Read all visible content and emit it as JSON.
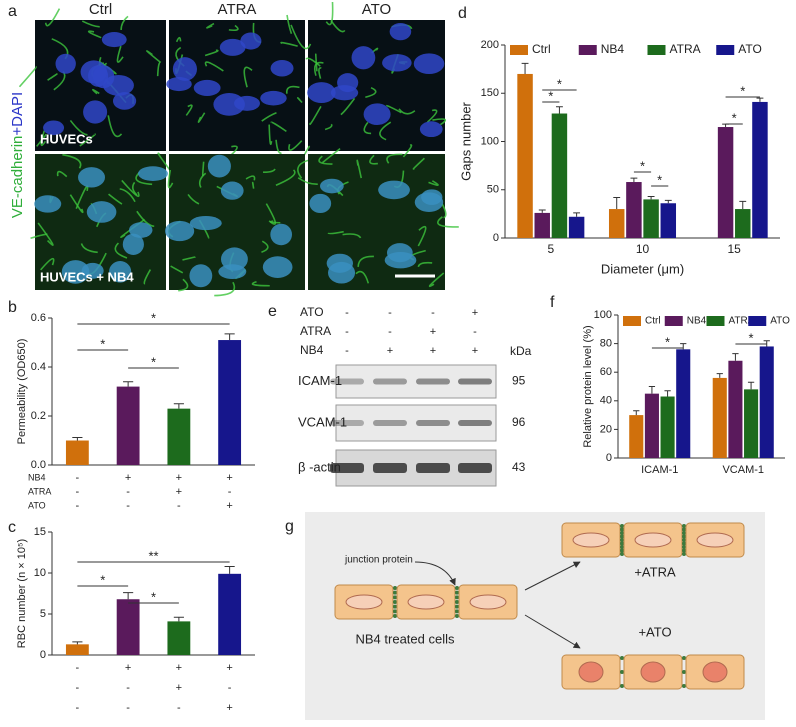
{
  "panel_labels": [
    "a",
    "b",
    "c",
    "d",
    "e",
    "f",
    "g"
  ],
  "panel_a": {
    "columns": [
      "Ctrl",
      "ATRA",
      "ATO"
    ],
    "stain": [
      "VE-cadherin",
      "+DAPI"
    ],
    "rows": [
      "HUVECs",
      "HUVECs + NB4"
    ]
  },
  "chart_data": [
    {
      "type": "bar",
      "ylabel": "Permeability (OD650)",
      "values": [
        0.1,
        0.32,
        0.23,
        0.51
      ],
      "errors": [
        0.012,
        0.02,
        0.02,
        0.025
      ],
      "colors": [
        "#d0700c",
        "#5a1a5c",
        "#1d6b1d",
        "#16168c"
      ],
      "ylim": [
        0,
        0.6
      ],
      "yticks": [
        {
          "value": 0,
          "label": "0.0"
        },
        0.2,
        0.4,
        0.6
      ],
      "conditions": [
        {
          "name": "NB4",
          "values": [
            "-",
            "+",
            "+",
            "+"
          ]
        },
        {
          "name": "ATRA",
          "values": [
            "-",
            "-",
            "+",
            "-"
          ]
        },
        {
          "name": "ATO",
          "values": [
            "-",
            "-",
            "-",
            "+"
          ]
        }
      ],
      "annotations": [
        "*",
        "*",
        "*"
      ]
    },
    {
      "type": "bar",
      "ylabel": "RBC number (n × 10⁵)",
      "values": [
        1.3,
        6.8,
        4.1,
        9.9
      ],
      "errors": [
        0.3,
        0.8,
        0.5,
        0.9
      ],
      "colors": [
        "#d0700c",
        "#5a1a5c",
        "#1d6b1d",
        "#16168c"
      ],
      "ylim": [
        0,
        15
      ],
      "yticks": [
        0,
        5,
        10,
        15
      ],
      "conditions": [
        {
          "values": [
            "-",
            "+",
            "+",
            "+"
          ]
        },
        {
          "values": [
            "-",
            "-",
            "+",
            "-"
          ]
        },
        {
          "values": [
            "-",
            "-",
            "-",
            "+"
          ]
        }
      ],
      "annotations": [
        "**",
        "*",
        "*"
      ]
    },
    {
      "type": "bar",
      "ylabel": "Gaps number",
      "xlabel": "Diameter (μm)",
      "categories": [
        "5",
        "10",
        "15"
      ],
      "series": [
        {
          "name": "Ctrl",
          "color": "#d0700c",
          "values": [
            170,
            30,
            null
          ],
          "errors": [
            11,
            12,
            null
          ]
        },
        {
          "name": "NB4",
          "color": "#5a1a5c",
          "values": [
            26,
            58,
            115
          ],
          "errors": [
            3,
            4,
            3
          ]
        },
        {
          "name": "ATRA",
          "color": "#1d6b1d",
          "values": [
            129,
            40,
            30
          ],
          "errors": [
            7,
            3,
            8
          ]
        },
        {
          "name": "ATO",
          "color": "#16168c",
          "values": [
            22,
            36,
            141
          ],
          "errors": [
            4,
            3,
            4
          ]
        }
      ],
      "ylim": [
        0,
        200
      ],
      "yticks": [
        0,
        50,
        100,
        150,
        200
      ],
      "legend": "top",
      "annotations": [
        "*",
        "*",
        "*",
        "*",
        "*",
        "*"
      ]
    },
    {
      "type": "bar",
      "ylabel": "Relative protein level (%)",
      "categories": [
        "ICAM-1",
        "VCAM-1"
      ],
      "series": [
        {
          "name": "Ctrl",
          "color": "#d0700c",
          "values": [
            30,
            56
          ],
          "errors": [
            3,
            3
          ]
        },
        {
          "name": "NB4",
          "color": "#5a1a5c",
          "values": [
            45,
            68
          ],
          "errors": [
            5,
            5
          ]
        },
        {
          "name": "ATRA",
          "color": "#1d6b1d",
          "values": [
            43,
            48
          ],
          "errors": [
            4,
            5
          ]
        },
        {
          "name": "ATO",
          "color": "#16168c",
          "values": [
            76,
            78
          ],
          "errors": [
            4,
            4
          ]
        }
      ],
      "ylim": [
        0,
        100
      ],
      "yticks": [
        0,
        20,
        40,
        60,
        80,
        100
      ],
      "legend": "top",
      "annotations": [
        "*",
        "*"
      ]
    }
  ],
  "panel_e": {
    "treatments": [
      {
        "name": "ATO",
        "values": [
          "-",
          "-",
          "-",
          "+"
        ]
      },
      {
        "name": "ATRA",
        "values": [
          "-",
          "-",
          "+",
          "-"
        ]
      },
      {
        "name": "NB4",
        "values": [
          "-",
          "+",
          "+",
          "+"
        ]
      }
    ],
    "unit": "kDa",
    "blots": [
      {
        "name": "ICAM-1",
        "size": "95"
      },
      {
        "name": "VCAM-1",
        "size": "96"
      },
      {
        "name": "β -actin",
        "size": "43"
      }
    ]
  },
  "panel_g": {
    "junction": "junction protein",
    "start": "NB4 treated cells",
    "atra": "+ATRA",
    "ato": "+ATO"
  }
}
